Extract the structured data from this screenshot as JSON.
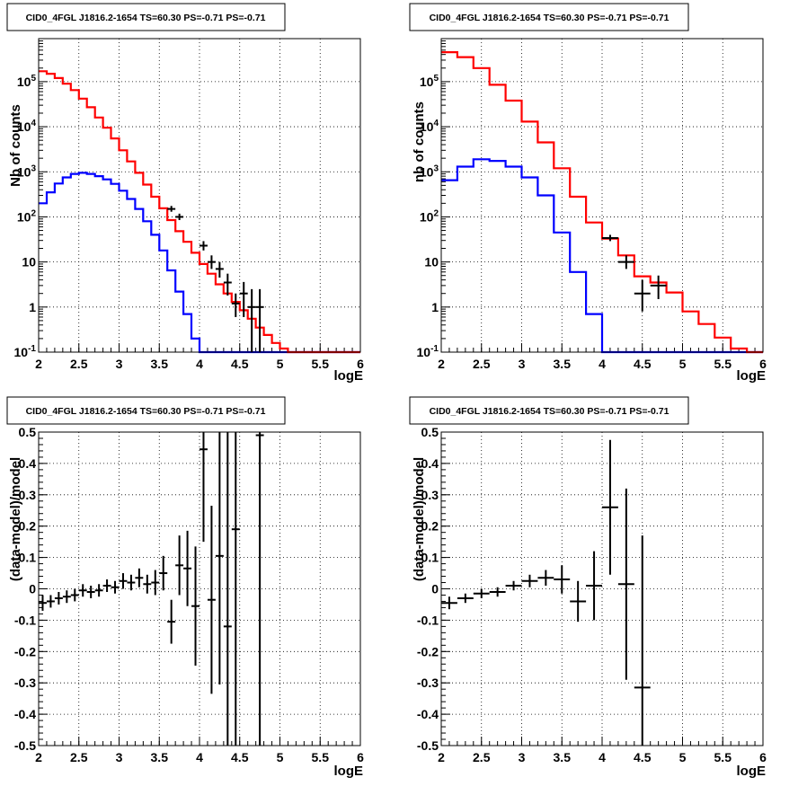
{
  "colors": {
    "data": "#000000",
    "model_total": "#ff0000",
    "model_source": "#0000ff",
    "grid": "#000000"
  },
  "chart_data": [
    {
      "type": "histogram",
      "title": "CID0_4FGL J1816.2-1654 TS=60.30 PS=-0.71 PS=-0.71",
      "xlabel": "logE",
      "ylabel": "Nb of counts",
      "xlim": [
        2,
        6
      ],
      "ylim": [
        0.1,
        900000
      ],
      "yscale": "log",
      "grid": true,
      "x_ticks": [
        "2",
        "2.5",
        "3",
        "3.5",
        "4",
        "4.5",
        "5",
        "5.5",
        "6"
      ],
      "y_ticks": [
        "10^-1",
        "1",
        "10",
        "10^2",
        "10^3",
        "10^4",
        "10^5"
      ],
      "bin_edges": [
        2.0,
        2.1,
        2.2,
        2.3,
        2.4,
        2.5,
        2.6,
        2.7,
        2.8,
        2.9,
        3.0,
        3.1,
        3.2,
        3.3,
        3.4,
        3.5,
        3.6,
        3.7,
        3.8,
        3.9,
        4.0,
        4.1,
        4.2,
        4.3,
        4.4,
        4.5,
        4.6,
        4.7,
        4.8,
        4.9,
        5.0,
        5.1,
        5.2,
        5.3,
        5.4,
        5.5,
        5.6,
        5.7,
        5.8,
        5.9,
        6.0
      ],
      "series": [
        {
          "name": "",
          "role": "model_total",
          "color": "#ff0000",
          "values": [
            170000,
            150000,
            120000,
            90000,
            65000,
            42000,
            27000,
            16000,
            9500,
            5500,
            3000,
            1700,
            950,
            520,
            280,
            155,
            85,
            48,
            28,
            16,
            9,
            5.5,
            3.2,
            2.0,
            1.3,
            0.85,
            0.55,
            0.35,
            0.24,
            0.16,
            0.12,
            0.1,
            0.1,
            0.1,
            0.1,
            0.1,
            0.1,
            0.1,
            0.1,
            0.1
          ]
        },
        {
          "name": "",
          "role": "model_source",
          "color": "#0000ff",
          "values": [
            200,
            350,
            550,
            750,
            900,
            950,
            900,
            800,
            680,
            540,
            380,
            250,
            150,
            80,
            40,
            18,
            6.5,
            2.2,
            0.7,
            0.2,
            0.1,
            0.1,
            0.1,
            0.1,
            0.1,
            0.1,
            0.1,
            0.1,
            0.1,
            0.1,
            0.1,
            0.1,
            0.1,
            0.1,
            0.1,
            0.1,
            0.1,
            0.1,
            0.1,
            0.1
          ]
        }
      ],
      "data_points": [
        {
          "x": 3.65,
          "y": 150,
          "ylo": 130,
          "yhi": 175,
          "xerr": 0.05
        },
        {
          "x": 3.75,
          "y": 100,
          "ylo": 85,
          "yhi": 118,
          "xerr": 0.05
        },
        {
          "x": 4.05,
          "y": 23,
          "ylo": 18,
          "yhi": 29,
          "xerr": 0.05
        },
        {
          "x": 4.15,
          "y": 10,
          "ylo": 7,
          "yhi": 14,
          "xerr": 0.05
        },
        {
          "x": 4.25,
          "y": 7,
          "ylo": 4.5,
          "yhi": 10,
          "xerr": 0.05
        },
        {
          "x": 4.35,
          "y": 3.5,
          "ylo": 1.8,
          "yhi": 5.5,
          "xerr": 0.05
        },
        {
          "x": 4.45,
          "y": 1.2,
          "ylo": 0.6,
          "yhi": 2,
          "xerr": 0.05
        },
        {
          "x": 4.55,
          "y": 2,
          "ylo": 0.6,
          "yhi": 3.6,
          "xerr": 0.05
        },
        {
          "x": 4.65,
          "y": 1,
          "ylo": 0.1,
          "yhi": 2.5,
          "xerr": 0.05
        },
        {
          "x": 4.75,
          "y": 1,
          "ylo": 0.1,
          "yhi": 2.5,
          "xerr": 0.05
        }
      ]
    },
    {
      "type": "histogram",
      "title": "CID0_4FGL J1816.2-1654 TS=60.30 PS=-0.71 PS=-0.71",
      "xlabel": "logE",
      "ylabel": "nb of counts",
      "xlim": [
        2,
        6
      ],
      "ylim": [
        0.1,
        900000
      ],
      "yscale": "log",
      "grid": true,
      "x_ticks": [
        "2",
        "2.5",
        "3",
        "3.5",
        "4",
        "4.5",
        "5",
        "5.5",
        "6"
      ],
      "y_ticks": [
        "10^-1",
        "1",
        "10",
        "10^2",
        "10^3",
        "10^4",
        "10^5"
      ],
      "bin_edges": [
        2.0,
        2.2,
        2.4,
        2.6,
        2.8,
        3.0,
        3.2,
        3.4,
        3.6,
        3.8,
        4.0,
        4.2,
        4.4,
        4.6,
        4.8,
        5.0,
        5.2,
        5.4,
        5.6,
        5.8,
        6.0
      ],
      "series": [
        {
          "name": "",
          "role": "model_total",
          "color": "#ff0000",
          "values": [
            450000,
            350000,
            200000,
            85000,
            38000,
            13000,
            4500,
            1200,
            280,
            75,
            33,
            14,
            4.8,
            3.5,
            2.1,
            0.8,
            0.42,
            0.21,
            0.12,
            0.1
          ]
        },
        {
          "name": "",
          "role": "model_source",
          "color": "#0000ff",
          "values": [
            650,
            1300,
            1900,
            1750,
            1300,
            750,
            300,
            45,
            6,
            0.7,
            0.1,
            0.1,
            0.1,
            0.1,
            0.1,
            0.1,
            0.1,
            0.1,
            0.1,
            0.1
          ]
        }
      ],
      "data_points": [
        {
          "x": 4.1,
          "y": 34,
          "ylo": 29,
          "yhi": 40,
          "xerr": 0.1
        },
        {
          "x": 4.3,
          "y": 10,
          "ylo": 7,
          "yhi": 14,
          "xerr": 0.1
        },
        {
          "x": 4.5,
          "y": 2,
          "ylo": 0.8,
          "yhi": 4,
          "xerr": 0.1
        },
        {
          "x": 4.7,
          "y": 3,
          "ylo": 1.5,
          "yhi": 5,
          "xerr": 0.1
        }
      ]
    },
    {
      "type": "scatter",
      "title": "CID0_4FGL J1816.2-1654 TS=60.30 PS=-0.71 PS=-0.71",
      "xlabel": "logE",
      "ylabel": "(data-model)/model",
      "xlim": [
        2,
        6
      ],
      "ylim": [
        -0.5,
        0.5
      ],
      "yscale": "linear",
      "grid": true,
      "x_ticks": [
        "2",
        "2.5",
        "3",
        "3.5",
        "4",
        "4.5",
        "5",
        "5.5",
        "6"
      ],
      "y_ticks": [
        "-0.5",
        "-0.4",
        "-0.3",
        "-0.2",
        "-0.1",
        "0",
        "0.1",
        "0.2",
        "0.3",
        "0.4",
        "0.5"
      ],
      "data_points": [
        {
          "x": 2.05,
          "y": -0.045,
          "ylo": -0.07,
          "yhi": -0.02,
          "xerr": 0.05
        },
        {
          "x": 2.15,
          "y": -0.04,
          "ylo": -0.06,
          "yhi": -0.02,
          "xerr": 0.05
        },
        {
          "x": 2.25,
          "y": -0.03,
          "ylo": -0.05,
          "yhi": -0.01,
          "xerr": 0.05
        },
        {
          "x": 2.35,
          "y": -0.025,
          "ylo": -0.045,
          "yhi": -0.005,
          "xerr": 0.05
        },
        {
          "x": 2.45,
          "y": -0.02,
          "ylo": -0.04,
          "yhi": 0.0,
          "xerr": 0.05
        },
        {
          "x": 2.55,
          "y": -0.005,
          "ylo": -0.025,
          "yhi": 0.015,
          "xerr": 0.05
        },
        {
          "x": 2.65,
          "y": -0.01,
          "ylo": -0.03,
          "yhi": 0.01,
          "xerr": 0.05
        },
        {
          "x": 2.75,
          "y": -0.005,
          "ylo": -0.025,
          "yhi": 0.015,
          "xerr": 0.05
        },
        {
          "x": 2.85,
          "y": 0.01,
          "ylo": -0.01,
          "yhi": 0.03,
          "xerr": 0.05
        },
        {
          "x": 2.95,
          "y": 0.005,
          "ylo": -0.015,
          "yhi": 0.025,
          "xerr": 0.05
        },
        {
          "x": 3.05,
          "y": 0.025,
          "ylo": 0.0,
          "yhi": 0.05,
          "xerr": 0.05
        },
        {
          "x": 3.15,
          "y": 0.02,
          "ylo": -0.005,
          "yhi": 0.045,
          "xerr": 0.05
        },
        {
          "x": 3.25,
          "y": 0.035,
          "ylo": 0.005,
          "yhi": 0.065,
          "xerr": 0.05
        },
        {
          "x": 3.35,
          "y": 0.015,
          "ylo": -0.015,
          "yhi": 0.045,
          "xerr": 0.05
        },
        {
          "x": 3.45,
          "y": 0.02,
          "ylo": -0.02,
          "yhi": 0.06,
          "xerr": 0.05
        },
        {
          "x": 3.55,
          "y": 0.05,
          "ylo": -0.005,
          "yhi": 0.105,
          "xerr": 0.05
        },
        {
          "x": 3.65,
          "y": -0.105,
          "ylo": -0.175,
          "yhi": -0.035,
          "xerr": 0.05
        },
        {
          "x": 3.75,
          "y": 0.075,
          "ylo": -0.02,
          "yhi": 0.17,
          "xerr": 0.05
        },
        {
          "x": 3.85,
          "y": 0.065,
          "ylo": -0.055,
          "yhi": 0.185,
          "xerr": 0.05
        },
        {
          "x": 3.95,
          "y": -0.055,
          "ylo": -0.245,
          "yhi": 0.135,
          "xerr": 0.05
        },
        {
          "x": 4.05,
          "y": 0.445,
          "ylo": 0.15,
          "yhi": 0.5,
          "xerr": 0.05
        },
        {
          "x": 4.15,
          "y": -0.035,
          "ylo": -0.335,
          "yhi": 0.265,
          "xerr": 0.05
        },
        {
          "x": 4.25,
          "y": 0.105,
          "ylo": -0.305,
          "yhi": 0.5,
          "xerr": 0.05
        },
        {
          "x": 4.35,
          "y": -0.12,
          "ylo": -0.5,
          "yhi": 0.5,
          "xerr": 0.05
        },
        {
          "x": 4.45,
          "y": 0.19,
          "ylo": -0.5,
          "yhi": 0.5,
          "xerr": 0.05
        },
        {
          "x": 4.75,
          "y": 0.49,
          "ylo": -0.5,
          "yhi": 0.5,
          "xerr": 0.05
        }
      ]
    },
    {
      "type": "scatter",
      "title": "CID0_4FGL J1816.2-1654 TS=60.30 PS=-0.71 PS=-0.71",
      "xlabel": "logE",
      "ylabel": "(data-model)/model",
      "xlim": [
        2,
        6
      ],
      "ylim": [
        -0.5,
        0.5
      ],
      "yscale": "linear",
      "grid": true,
      "x_ticks": [
        "2",
        "2.5",
        "3",
        "3.5",
        "4",
        "4.5",
        "5",
        "5.5",
        "6"
      ],
      "y_ticks": [
        "-0.5",
        "-0.4",
        "-0.3",
        "-0.2",
        "-0.1",
        "0",
        "0.1",
        "0.2",
        "0.3",
        "0.4",
        "0.5"
      ],
      "data_points": [
        {
          "x": 2.1,
          "y": -0.045,
          "ylo": -0.065,
          "yhi": -0.025,
          "xerr": 0.1
        },
        {
          "x": 2.3,
          "y": -0.03,
          "ylo": -0.045,
          "yhi": -0.015,
          "xerr": 0.1
        },
        {
          "x": 2.5,
          "y": -0.015,
          "ylo": -0.03,
          "yhi": 0.0,
          "xerr": 0.1
        },
        {
          "x": 2.7,
          "y": -0.01,
          "ylo": -0.025,
          "yhi": 0.005,
          "xerr": 0.1
        },
        {
          "x": 2.9,
          "y": 0.01,
          "ylo": -0.005,
          "yhi": 0.025,
          "xerr": 0.1
        },
        {
          "x": 3.1,
          "y": 0.025,
          "ylo": 0.005,
          "yhi": 0.045,
          "xerr": 0.1
        },
        {
          "x": 3.3,
          "y": 0.035,
          "ylo": 0.01,
          "yhi": 0.06,
          "xerr": 0.1
        },
        {
          "x": 3.5,
          "y": 0.03,
          "ylo": -0.015,
          "yhi": 0.075,
          "xerr": 0.1
        },
        {
          "x": 3.7,
          "y": -0.04,
          "ylo": -0.105,
          "yhi": 0.025,
          "xerr": 0.1
        },
        {
          "x": 3.9,
          "y": 0.01,
          "ylo": -0.1,
          "yhi": 0.12,
          "xerr": 0.1
        },
        {
          "x": 4.1,
          "y": 0.26,
          "ylo": 0.045,
          "yhi": 0.475,
          "xerr": 0.1
        },
        {
          "x": 4.3,
          "y": 0.015,
          "ylo": -0.29,
          "yhi": 0.32,
          "xerr": 0.1
        },
        {
          "x": 4.5,
          "y": -0.315,
          "ylo": -0.5,
          "yhi": 0.17,
          "xerr": 0.1
        }
      ]
    }
  ]
}
